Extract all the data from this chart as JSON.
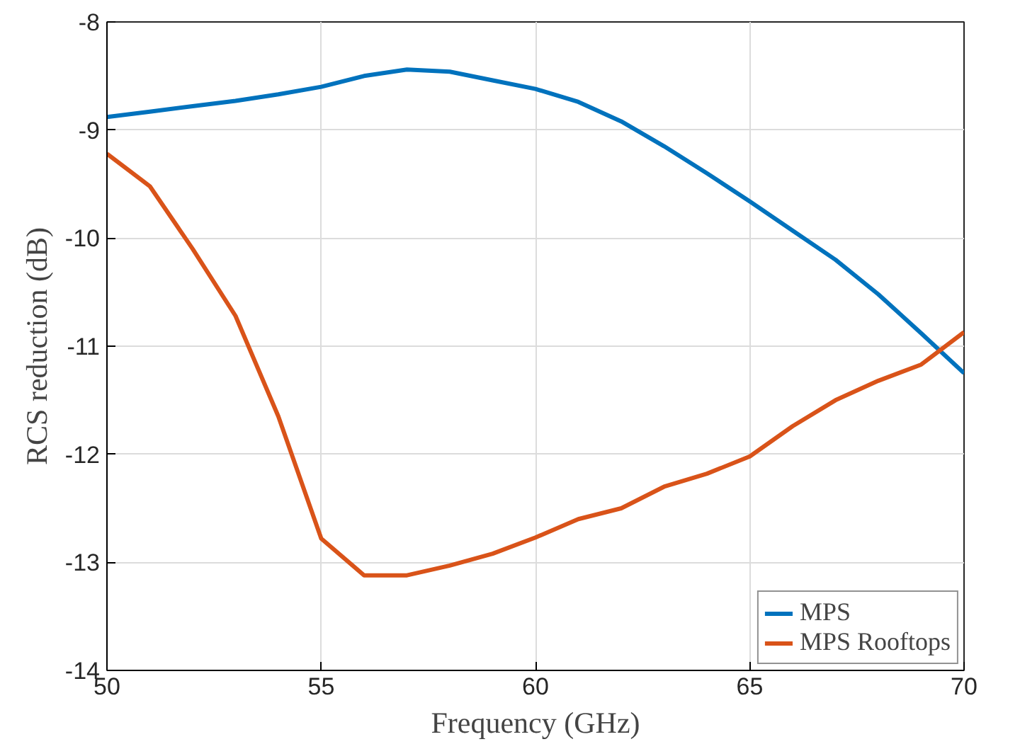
{
  "chart_data": {
    "type": "line",
    "xlabel": "Frequency (GHz)",
    "ylabel": "RCS reduction (dB)",
    "x": [
      50,
      51,
      52,
      53,
      54,
      55,
      56,
      57,
      58,
      59,
      60,
      61,
      62,
      63,
      64,
      65,
      66,
      67,
      68,
      69,
      70
    ],
    "series": [
      {
        "name": "MPS",
        "color": "#0072bd",
        "values": [
          -8.88,
          -8.83,
          -8.78,
          -8.73,
          -8.67,
          -8.6,
          -8.5,
          -8.44,
          -8.46,
          -8.54,
          -8.62,
          -8.74,
          -8.92,
          -9.15,
          -9.4,
          -9.66,
          -9.93,
          -10.2,
          -10.52,
          -10.88,
          -11.25
        ]
      },
      {
        "name": "MPS Rooftops",
        "color": "#d95319",
        "values": [
          -9.22,
          -9.52,
          -10.1,
          -10.72,
          -11.65,
          -12.78,
          -13.12,
          -13.12,
          -13.03,
          -12.92,
          -12.77,
          -12.6,
          -12.5,
          -12.3,
          -12.18,
          -12.02,
          -11.74,
          -11.5,
          -11.32,
          -11.17,
          -10.87
        ]
      }
    ],
    "xlim": [
      50,
      70
    ],
    "ylim": [
      -14,
      -8
    ],
    "xticks": [
      50,
      55,
      60,
      65,
      70
    ],
    "yticks": [
      -14,
      -13,
      -12,
      -11,
      -10,
      -9,
      -8
    ],
    "grid": true,
    "legend": "bottom right",
    "line_style": "solid"
  }
}
